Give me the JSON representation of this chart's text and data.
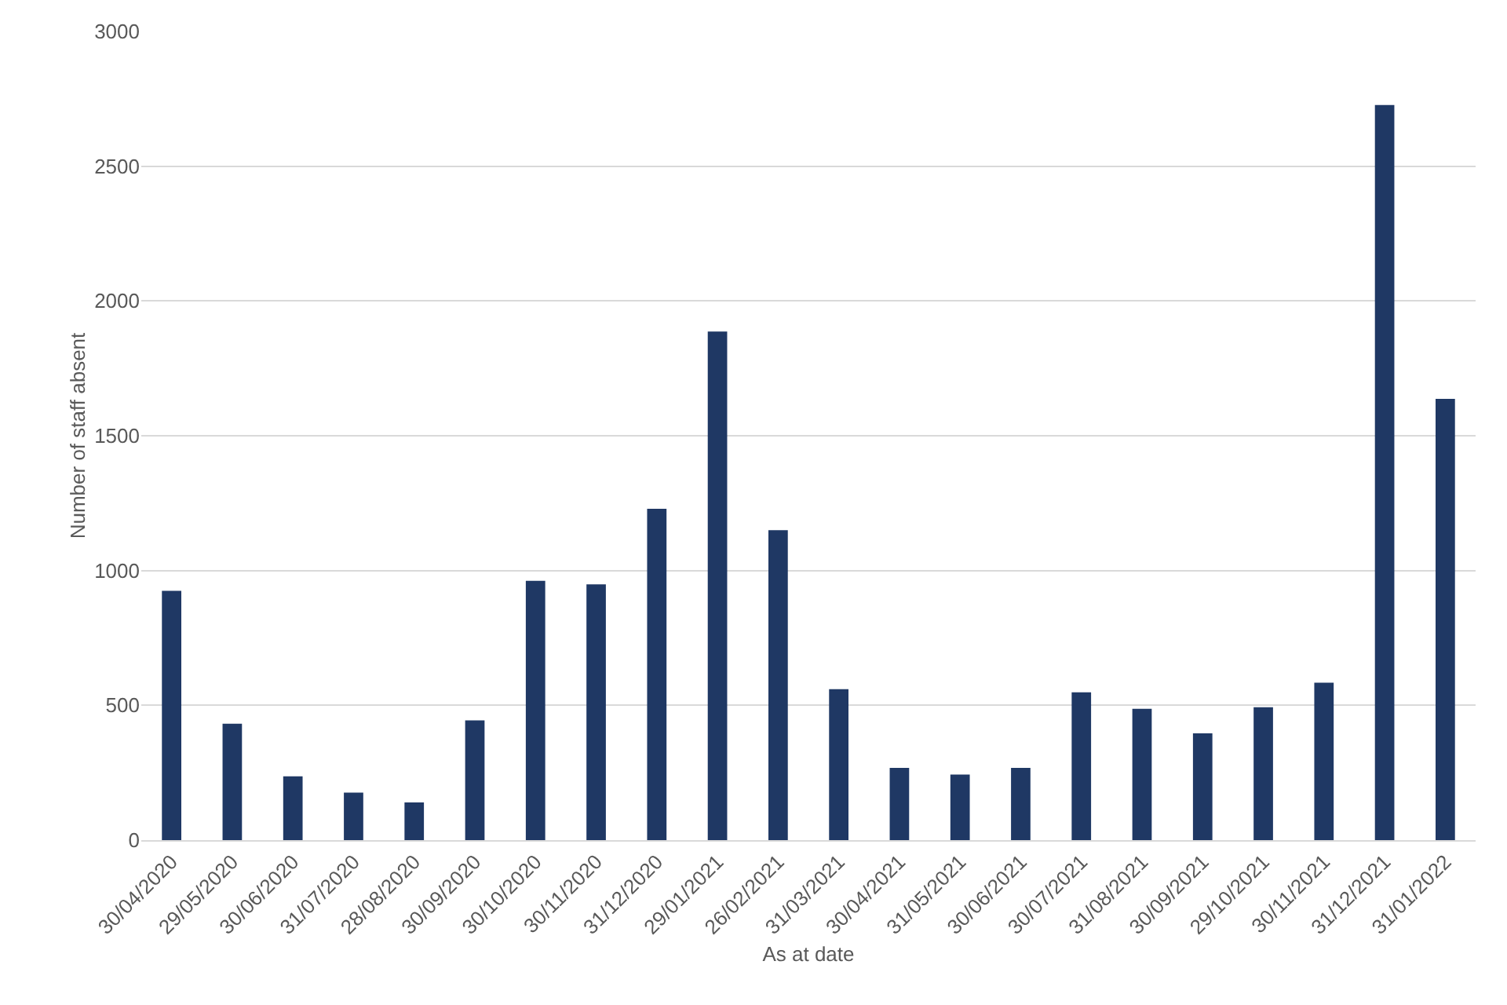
{
  "chart_data": {
    "type": "bar",
    "xlabel": "As at date",
    "ylabel": "Number of staff absent",
    "categories": [
      "30/04/2020",
      "29/05/2020",
      "30/06/2020",
      "31/07/2020",
      "28/08/2020",
      "30/09/2020",
      "30/10/2020",
      "30/11/2020",
      "31/12/2020",
      "29/01/2021",
      "26/02/2021",
      "31/03/2021",
      "30/04/2021",
      "31/05/2021",
      "30/06/2021",
      "30/07/2021",
      "31/08/2021",
      "30/09/2021",
      "29/10/2021",
      "30/11/2021",
      "31/12/2021",
      "31/01/2022"
    ],
    "values": [
      925,
      432,
      237,
      176,
      140,
      444,
      962,
      949,
      1229,
      1887,
      1150,
      560,
      268,
      243,
      268,
      548,
      487,
      396,
      493,
      584,
      2727,
      1637
    ],
    "color": "#1f3864",
    "ylim": [
      0,
      3000
    ],
    "yticks": [
      0,
      500,
      1000,
      1500,
      2000,
      2500,
      3000
    ],
    "grid": "y",
    "legend": false
  }
}
